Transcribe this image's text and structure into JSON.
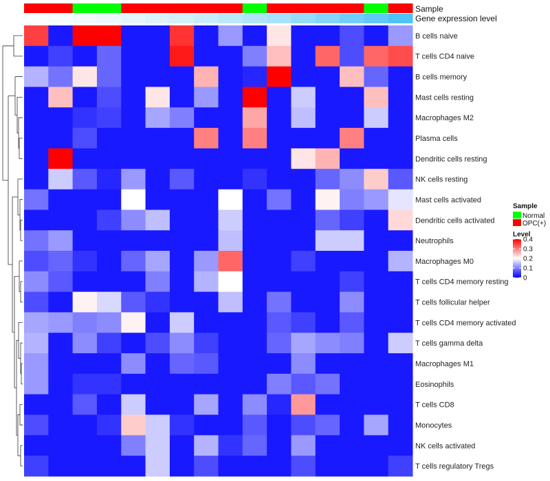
{
  "chart_data": {
    "type": "heatmap",
    "title": "",
    "annotation_tracks": [
      {
        "name": "Sample",
        "type": "categorical"
      },
      {
        "name": "Gene expression level",
        "type": "continuous"
      }
    ],
    "sample_groups": [
      "OPC(+)",
      "OPC(+)",
      "Normal",
      "Normal",
      "OPC(+)",
      "OPC(+)",
      "OPC(+)",
      "OPC(+)",
      "OPC(+)",
      "Normal",
      "OPC(+)",
      "OPC(+)",
      "OPC(+)",
      "OPC(+)",
      "Normal",
      "OPC(+)"
    ],
    "gene_expression_level": [
      0.02,
      0.05,
      0.08,
      0.11,
      0.15,
      0.2,
      0.25,
      0.3,
      0.38,
      0.45,
      0.5,
      0.6,
      0.7,
      0.8,
      0.9,
      1.0
    ],
    "rows": [
      "B cells naive",
      "T cells CD4 naive",
      "B cells memory",
      "Mast cells resting",
      "Macrophages M2",
      "Plasma cells",
      "Dendritic cells resting",
      "NK cells resting",
      "Mast cells activated",
      "Dendritic cells activated",
      "Neutrophils",
      "Macrophages M0",
      "T cells CD4 memory resting",
      "T cells follicular helper",
      "T cells CD4 memory activated",
      "T cells gamma delta",
      "Macrophages M1",
      "Eosinophils",
      "T cells CD8",
      "Monocytes",
      "NK cells activated",
      "T cells regulatory  Tregs"
    ],
    "values": [
      [
        0.35,
        0.02,
        0.4,
        0.4,
        0.02,
        0.02,
        0.36,
        0.02,
        0.12,
        0.02,
        0.22,
        0.02,
        0.02,
        0.06,
        0.02,
        0.12
      ],
      [
        0.02,
        0.05,
        0.02,
        0.08,
        0.02,
        0.02,
        0.38,
        0.02,
        0.02,
        0.1,
        0.25,
        0.02,
        0.32,
        0.06,
        0.32,
        0.34
      ],
      [
        0.14,
        0.09,
        0.22,
        0.08,
        0.02,
        0.02,
        0.02,
        0.26,
        0.02,
        0.03,
        0.4,
        0.02,
        0.02,
        0.25,
        0.08,
        0.02
      ],
      [
        0.02,
        0.25,
        0.02,
        0.06,
        0.02,
        0.22,
        0.02,
        0.12,
        0.02,
        0.4,
        0.02,
        0.16,
        0.02,
        0.02,
        0.25,
        0.02
      ],
      [
        0.02,
        0.02,
        0.04,
        0.05,
        0.02,
        0.13,
        0.1,
        0.02,
        0.02,
        0.27,
        0.02,
        0.15,
        0.02,
        0.02,
        0.16,
        0.02
      ],
      [
        0.02,
        0.02,
        0.06,
        0.02,
        0.02,
        0.02,
        0.02,
        0.3,
        0.02,
        0.3,
        0.02,
        0.02,
        0.02,
        0.3,
        0.02,
        0.02
      ],
      [
        0.02,
        0.4,
        0.02,
        0.02,
        0.02,
        0.02,
        0.02,
        0.02,
        0.02,
        0.02,
        0.02,
        0.22,
        0.26,
        0.02,
        0.02,
        0.02
      ],
      [
        0.02,
        0.16,
        0.07,
        0.03,
        0.12,
        0.02,
        0.07,
        0.02,
        0.02,
        0.04,
        0.02,
        0.02,
        0.08,
        0.11,
        0.24,
        0.07
      ],
      [
        0.09,
        0.02,
        0.02,
        0.02,
        0.2,
        0.02,
        0.02,
        0.02,
        0.2,
        0.02,
        0.09,
        0.02,
        0.21,
        0.1,
        0.12,
        0.18
      ],
      [
        0.02,
        0.02,
        0.02,
        0.05,
        0.11,
        0.15,
        0.02,
        0.02,
        0.16,
        0.02,
        0.02,
        0.02,
        0.08,
        0.05,
        0.02,
        0.23
      ],
      [
        0.09,
        0.12,
        0.02,
        0.02,
        0.02,
        0.02,
        0.02,
        0.02,
        0.15,
        0.02,
        0.02,
        0.02,
        0.16,
        0.16,
        0.02,
        0.02
      ],
      [
        0.06,
        0.08,
        0.04,
        0.02,
        0.08,
        0.13,
        0.02,
        0.12,
        0.32,
        0.02,
        0.02,
        0.05,
        0.02,
        0.02,
        0.02,
        0.14
      ],
      [
        0.11,
        0.07,
        0.02,
        0.02,
        0.02,
        0.1,
        0.02,
        0.14,
        0.2,
        0.02,
        0.02,
        0.02,
        0.02,
        0.05,
        0.02,
        0.02
      ],
      [
        0.06,
        0.02,
        0.21,
        0.17,
        0.07,
        0.04,
        0.02,
        0.02,
        0.15,
        0.02,
        0.09,
        0.02,
        0.02,
        0.11,
        0.02,
        0.02
      ],
      [
        0.13,
        0.12,
        0.1,
        0.11,
        0.21,
        0.02,
        0.16,
        0.02,
        0.02,
        0.02,
        0.07,
        0.05,
        0.02,
        0.07,
        0.02,
        0.02
      ],
      [
        0.14,
        0.02,
        0.11,
        0.05,
        0.02,
        0.06,
        0.11,
        0.05,
        0.02,
        0.02,
        0.08,
        0.13,
        0.11,
        0.1,
        0.02,
        0.16
      ],
      [
        0.12,
        0.02,
        0.02,
        0.02,
        0.11,
        0.02,
        0.08,
        0.07,
        0.02,
        0.02,
        0.02,
        0.11,
        0.02,
        0.02,
        0.02,
        0.02
      ],
      [
        0.12,
        0.02,
        0.04,
        0.04,
        0.02,
        0.02,
        0.02,
        0.02,
        0.02,
        0.02,
        0.1,
        0.07,
        0.09,
        0.02,
        0.02,
        0.02
      ],
      [
        0.02,
        0.02,
        0.07,
        0.02,
        0.16,
        0.02,
        0.02,
        0.13,
        0.02,
        0.11,
        0.03,
        0.28,
        0.02,
        0.02,
        0.02,
        0.02
      ],
      [
        0.06,
        0.02,
        0.02,
        0.04,
        0.24,
        0.16,
        0.04,
        0.02,
        0.02,
        0.07,
        0.02,
        0.06,
        0.08,
        0.02,
        0.13,
        0.02
      ],
      [
        0.02,
        0.02,
        0.02,
        0.02,
        0.1,
        0.16,
        0.02,
        0.14,
        0.04,
        0.08,
        0.02,
        0.12,
        0.02,
        0.02,
        0.02,
        0.02
      ],
      [
        0.05,
        0.02,
        0.02,
        0.02,
        0.02,
        0.16,
        0.02,
        0.06,
        0.02,
        0.02,
        0.02,
        0.06,
        0.02,
        0.02,
        0.02,
        0.05
      ]
    ],
    "color_scale": {
      "min": 0,
      "mid": 0.2,
      "max": 0.4,
      "low": "#0000FF",
      "mid_color": "#FFFFFF",
      "high": "#FF0000"
    },
    "legend": {
      "sample_title": "Sample",
      "sample_items": [
        {
          "label": "Normal",
          "color": "#00FF00"
        },
        {
          "label": "OPC(+)",
          "color": "#FF0000"
        }
      ],
      "level_title": "Level",
      "level_ticks": [
        {
          "value": 0.4,
          "label": "0.4"
        },
        {
          "value": 0.3,
          "label": "0.3"
        },
        {
          "value": 0.2,
          "label": "0.2"
        },
        {
          "value": 0.1,
          "label": "0.1"
        },
        {
          "value": 0,
          "label": "0"
        }
      ]
    },
    "annotation_colors": {
      "Normal": "#00FF00",
      "OPC(+)": "#FF0000",
      "expr_low": "#FFFFFF",
      "expr_high": "#4FC3F7"
    }
  }
}
